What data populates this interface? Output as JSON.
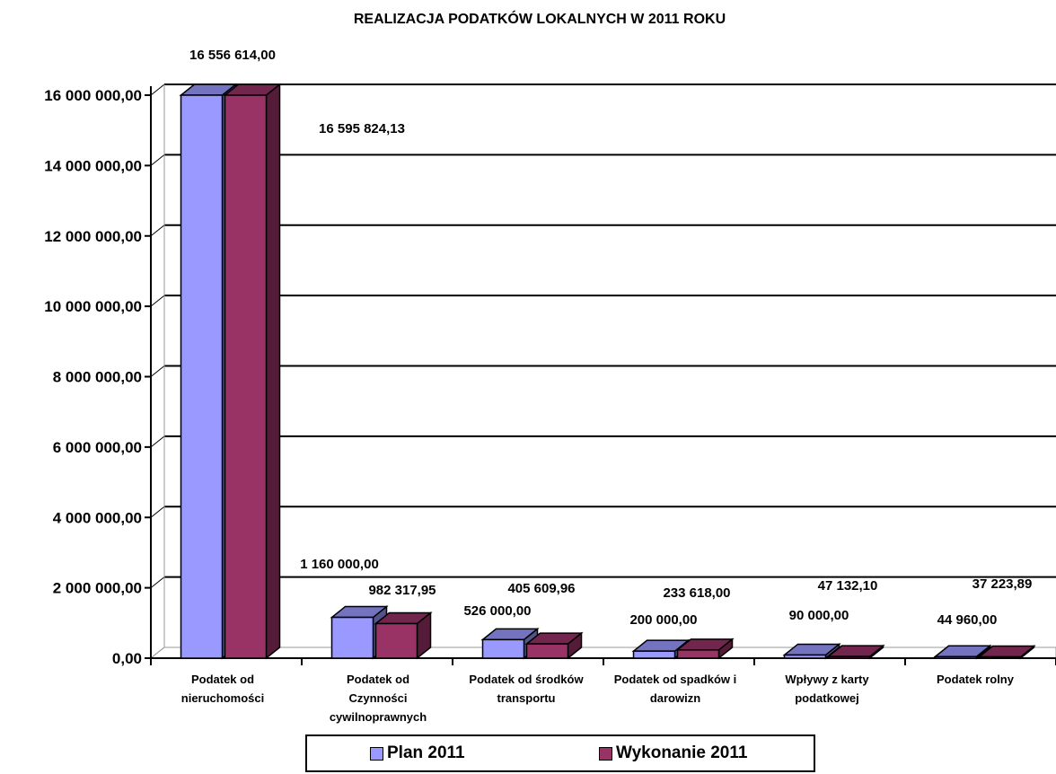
{
  "chart_data": {
    "type": "bar",
    "title": "REALIZACJA PODATKÓW LOKALNYCH W 2011 ROKU",
    "xlabel": "",
    "ylabel": "",
    "ylim": [
      0,
      16000000
    ],
    "y_ticks": [
      "0,00",
      "2 000 000,00",
      "4 000 000,00",
      "6 000 000,00",
      "8 000 000,00",
      "10 000 000,00",
      "12 000 000,00",
      "14 000 000,00",
      "16 000 000,00"
    ],
    "grid": true,
    "legend_position": "bottom",
    "categories": [
      "Podatek od nieruchomości",
      "Podatek od Czynności cywilnoprawnych",
      "Podatek od środków transportu",
      "Podatek od spadków i darowizn",
      "Wpływy z karty podatkowej",
      "Podatek rolny"
    ],
    "series": [
      {
        "name": "Plan 2011",
        "color": "#9999ff",
        "values": [
          16556614.0,
          1160000.0,
          526000.0,
          200000.0,
          90000.0,
          44960.0
        ],
        "labels": [
          "16 556 614,00",
          "1 160 000,00",
          "526 000,00",
          "200 000,00",
          "90 000,00",
          "44 960,00"
        ]
      },
      {
        "name": "Wykonanie 2011",
        "color": "#993366",
        "values": [
          16595824.13,
          982317.95,
          405609.96,
          233618.0,
          47132.1,
          37223.89
        ],
        "labels": [
          "16 595 824,13",
          "982 317,95",
          "405 609,96",
          "233 618,00",
          "47 132,10",
          "37 223,89"
        ]
      }
    ]
  }
}
